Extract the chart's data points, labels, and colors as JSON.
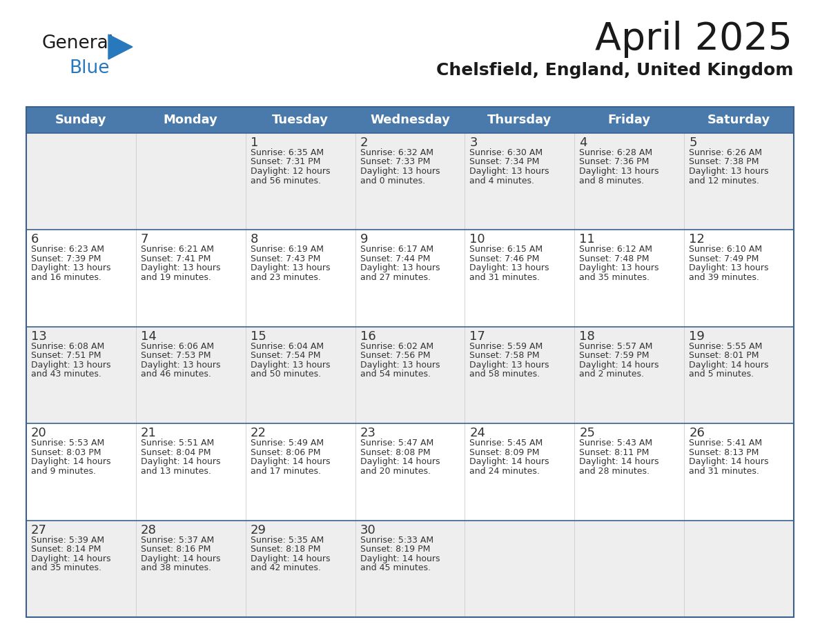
{
  "title": "April 2025",
  "subtitle": "Chelsfield, England, United Kingdom",
  "days_of_week": [
    "Sunday",
    "Monday",
    "Tuesday",
    "Wednesday",
    "Thursday",
    "Friday",
    "Saturday"
  ],
  "header_bg": "#4a7aab",
  "header_text": "#ffffff",
  "row_bg_odd": "#eeeeee",
  "row_bg_even": "#ffffff",
  "border_color": "#3a6090",
  "text_color": "#333333",
  "calendar_data": [
    [
      {
        "day": null,
        "info": null
      },
      {
        "day": null,
        "info": null
      },
      {
        "day": 1,
        "info": "Sunrise: 6:35 AM\nSunset: 7:31 PM\nDaylight: 12 hours\nand 56 minutes."
      },
      {
        "day": 2,
        "info": "Sunrise: 6:32 AM\nSunset: 7:33 PM\nDaylight: 13 hours\nand 0 minutes."
      },
      {
        "day": 3,
        "info": "Sunrise: 6:30 AM\nSunset: 7:34 PM\nDaylight: 13 hours\nand 4 minutes."
      },
      {
        "day": 4,
        "info": "Sunrise: 6:28 AM\nSunset: 7:36 PM\nDaylight: 13 hours\nand 8 minutes."
      },
      {
        "day": 5,
        "info": "Sunrise: 6:26 AM\nSunset: 7:38 PM\nDaylight: 13 hours\nand 12 minutes."
      }
    ],
    [
      {
        "day": 6,
        "info": "Sunrise: 6:23 AM\nSunset: 7:39 PM\nDaylight: 13 hours\nand 16 minutes."
      },
      {
        "day": 7,
        "info": "Sunrise: 6:21 AM\nSunset: 7:41 PM\nDaylight: 13 hours\nand 19 minutes."
      },
      {
        "day": 8,
        "info": "Sunrise: 6:19 AM\nSunset: 7:43 PM\nDaylight: 13 hours\nand 23 minutes."
      },
      {
        "day": 9,
        "info": "Sunrise: 6:17 AM\nSunset: 7:44 PM\nDaylight: 13 hours\nand 27 minutes."
      },
      {
        "day": 10,
        "info": "Sunrise: 6:15 AM\nSunset: 7:46 PM\nDaylight: 13 hours\nand 31 minutes."
      },
      {
        "day": 11,
        "info": "Sunrise: 6:12 AM\nSunset: 7:48 PM\nDaylight: 13 hours\nand 35 minutes."
      },
      {
        "day": 12,
        "info": "Sunrise: 6:10 AM\nSunset: 7:49 PM\nDaylight: 13 hours\nand 39 minutes."
      }
    ],
    [
      {
        "day": 13,
        "info": "Sunrise: 6:08 AM\nSunset: 7:51 PM\nDaylight: 13 hours\nand 43 minutes."
      },
      {
        "day": 14,
        "info": "Sunrise: 6:06 AM\nSunset: 7:53 PM\nDaylight: 13 hours\nand 46 minutes."
      },
      {
        "day": 15,
        "info": "Sunrise: 6:04 AM\nSunset: 7:54 PM\nDaylight: 13 hours\nand 50 minutes."
      },
      {
        "day": 16,
        "info": "Sunrise: 6:02 AM\nSunset: 7:56 PM\nDaylight: 13 hours\nand 54 minutes."
      },
      {
        "day": 17,
        "info": "Sunrise: 5:59 AM\nSunset: 7:58 PM\nDaylight: 13 hours\nand 58 minutes."
      },
      {
        "day": 18,
        "info": "Sunrise: 5:57 AM\nSunset: 7:59 PM\nDaylight: 14 hours\nand 2 minutes."
      },
      {
        "day": 19,
        "info": "Sunrise: 5:55 AM\nSunset: 8:01 PM\nDaylight: 14 hours\nand 5 minutes."
      }
    ],
    [
      {
        "day": 20,
        "info": "Sunrise: 5:53 AM\nSunset: 8:03 PM\nDaylight: 14 hours\nand 9 minutes."
      },
      {
        "day": 21,
        "info": "Sunrise: 5:51 AM\nSunset: 8:04 PM\nDaylight: 14 hours\nand 13 minutes."
      },
      {
        "day": 22,
        "info": "Sunrise: 5:49 AM\nSunset: 8:06 PM\nDaylight: 14 hours\nand 17 minutes."
      },
      {
        "day": 23,
        "info": "Sunrise: 5:47 AM\nSunset: 8:08 PM\nDaylight: 14 hours\nand 20 minutes."
      },
      {
        "day": 24,
        "info": "Sunrise: 5:45 AM\nSunset: 8:09 PM\nDaylight: 14 hours\nand 24 minutes."
      },
      {
        "day": 25,
        "info": "Sunrise: 5:43 AM\nSunset: 8:11 PM\nDaylight: 14 hours\nand 28 minutes."
      },
      {
        "day": 26,
        "info": "Sunrise: 5:41 AM\nSunset: 8:13 PM\nDaylight: 14 hours\nand 31 minutes."
      }
    ],
    [
      {
        "day": 27,
        "info": "Sunrise: 5:39 AM\nSunset: 8:14 PM\nDaylight: 14 hours\nand 35 minutes."
      },
      {
        "day": 28,
        "info": "Sunrise: 5:37 AM\nSunset: 8:16 PM\nDaylight: 14 hours\nand 38 minutes."
      },
      {
        "day": 29,
        "info": "Sunrise: 5:35 AM\nSunset: 8:18 PM\nDaylight: 14 hours\nand 42 minutes."
      },
      {
        "day": 30,
        "info": "Sunrise: 5:33 AM\nSunset: 8:19 PM\nDaylight: 14 hours\nand 45 minutes."
      },
      {
        "day": null,
        "info": null
      },
      {
        "day": null,
        "info": null
      },
      {
        "day": null,
        "info": null
      }
    ]
  ],
  "logo_color_general": "#1a1a1a",
  "logo_color_blue": "#2878be",
  "logo_triangle_color": "#2878be",
  "title_fontsize": 40,
  "subtitle_fontsize": 18,
  "header_fontsize": 13,
  "day_number_fontsize": 13,
  "info_fontsize": 9
}
